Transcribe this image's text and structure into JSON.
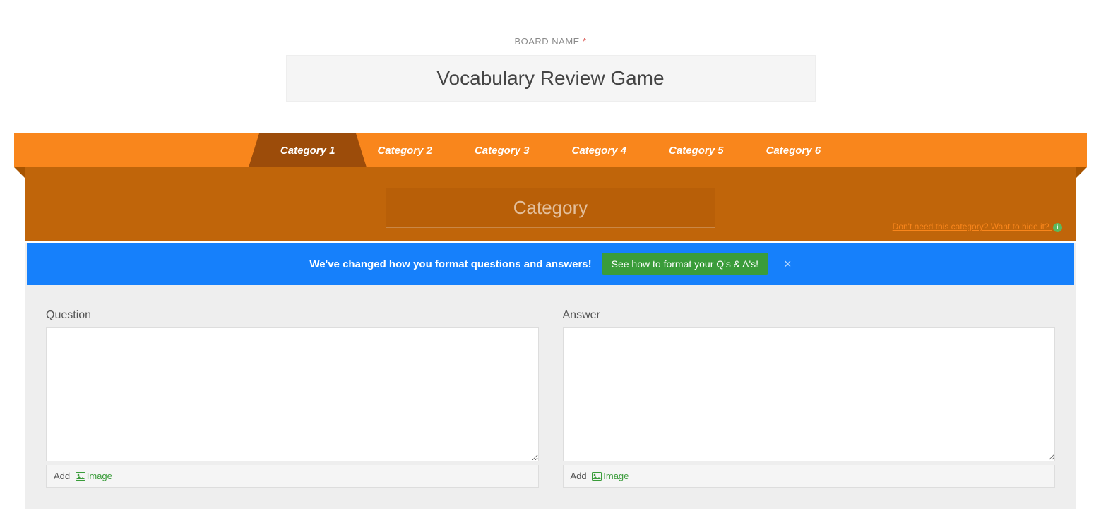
{
  "board": {
    "name_label": "BOARD NAME",
    "required_mark": "*",
    "name_value": "Vocabulary Review Game"
  },
  "tabs": [
    {
      "label": "Category 1",
      "active": true
    },
    {
      "label": "Category 2",
      "active": false
    },
    {
      "label": "Category 3",
      "active": false
    },
    {
      "label": "Category 4",
      "active": false
    },
    {
      "label": "Category 5",
      "active": false
    },
    {
      "label": "Category 6",
      "active": false
    }
  ],
  "category": {
    "placeholder": "Category",
    "value": "",
    "hide_link": "Don't need this category? Want to hide it?"
  },
  "alert": {
    "text": "We've changed how you format questions and answers!",
    "button": "See how to format your Q's & A's!",
    "close": "×"
  },
  "qa": {
    "question_label": "Question",
    "answer_label": "Answer",
    "add_label": "Add",
    "image_label": "Image"
  },
  "colors": {
    "tab_bar": "#f9861c",
    "tab_active": "#9c4c0a",
    "panel": "#c0650a",
    "alert": "#1680fb",
    "alert_btn": "#3a9c3a",
    "content_bg": "#eeeeee"
  }
}
